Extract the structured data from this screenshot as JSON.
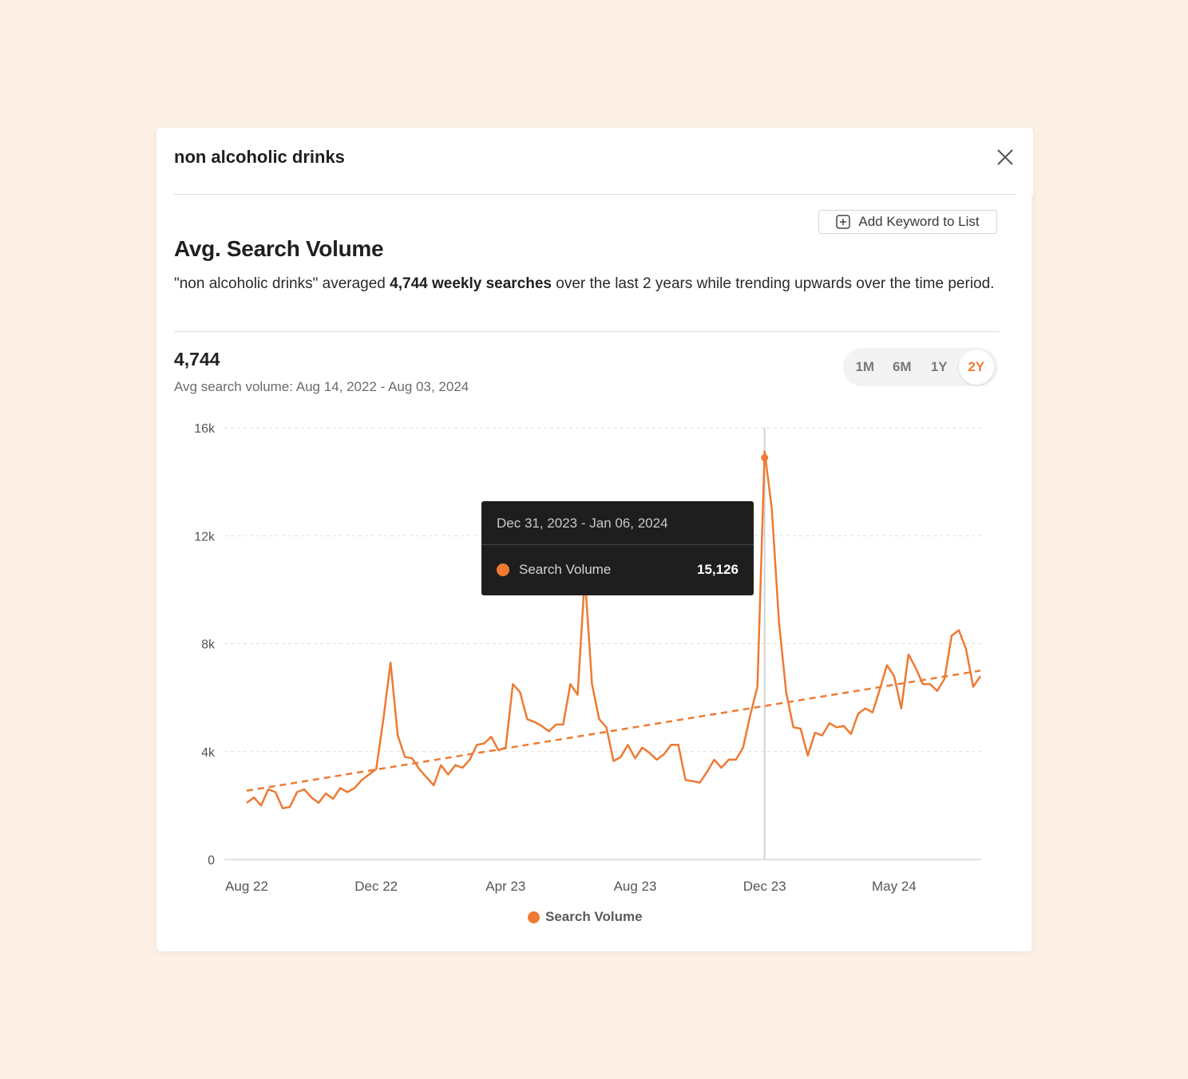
{
  "modal": {
    "title": "non alcoholic drinks",
    "add_keyword_label": "Add Keyword to List"
  },
  "section": {
    "title": "Avg. Search Volume",
    "summary_pre": "\"non alcoholic drinks\" averaged ",
    "summary_bold": "4,744 weekly searches",
    "summary_post": " over the last 2 years while trending upwards over the time period."
  },
  "stats": {
    "avg_value": "4,744",
    "avg_caption": "Avg search volume: Aug 14, 2022 - Aug 03, 2024"
  },
  "range_toggle": {
    "options": [
      "1M",
      "6M",
      "1Y",
      "2Y"
    ],
    "selected": "2Y"
  },
  "tooltip": {
    "date_range": "Dec 31, 2023 - Jan 06, 2024",
    "series_label": "Search Volume",
    "value": "15,126"
  },
  "legend": {
    "label": "Search Volume"
  },
  "colors": {
    "accent": "#ee7a33",
    "grid": "#dddddd",
    "axis_text": "#555555"
  },
  "icons": {
    "close": "close-icon",
    "add": "plus-square-icon"
  },
  "chart_data": {
    "type": "line",
    "ylim": [
      0,
      16000
    ],
    "yticks": [
      "0",
      "4k",
      "8k",
      "12k",
      "16k"
    ],
    "ytick_values": [
      0,
      4000,
      8000,
      12000,
      16000
    ],
    "xtick_labels": [
      "Aug 22",
      "Dec 22",
      "Apr 23",
      "Aug 23",
      "Dec 23",
      "May 24"
    ],
    "xtick_indices": [
      0,
      18,
      36,
      54,
      72,
      90
    ],
    "grid": true,
    "series": [
      {
        "name": "Search Volume",
        "values": [
          2100,
          2300,
          2000,
          2600,
          2500,
          1900,
          1950,
          2500,
          2600,
          2300,
          2100,
          2450,
          2250,
          2650,
          2500,
          2650,
          2950,
          3150,
          3350,
          5200,
          7300,
          4600,
          3800,
          3750,
          3350,
          3050,
          2750,
          3500,
          3150,
          3500,
          3400,
          3700,
          4250,
          4300,
          4550,
          4050,
          4150,
          6500,
          6200,
          5200,
          5100,
          4950,
          4750,
          5000,
          5000,
          6500,
          6100,
          10500,
          6500,
          5200,
          4900,
          3650,
          3800,
          4250,
          3750,
          4150,
          3950,
          3700,
          3900,
          4250,
          4250,
          2950,
          2900,
          2850,
          3250,
          3700,
          3400,
          3700,
          3700,
          4150,
          5350,
          6400,
          15126,
          13000,
          8800,
          6200,
          4900,
          4850,
          3850,
          4700,
          4600,
          5050,
          4900,
          4950,
          4650,
          5400,
          5600,
          5450,
          6300,
          7200,
          6800,
          5600,
          7600,
          7100,
          6500,
          6500,
          6250,
          6700,
          8300,
          8500,
          7800,
          6400,
          6800
        ],
        "trend": [
          2550,
          7000
        ]
      }
    ]
  }
}
